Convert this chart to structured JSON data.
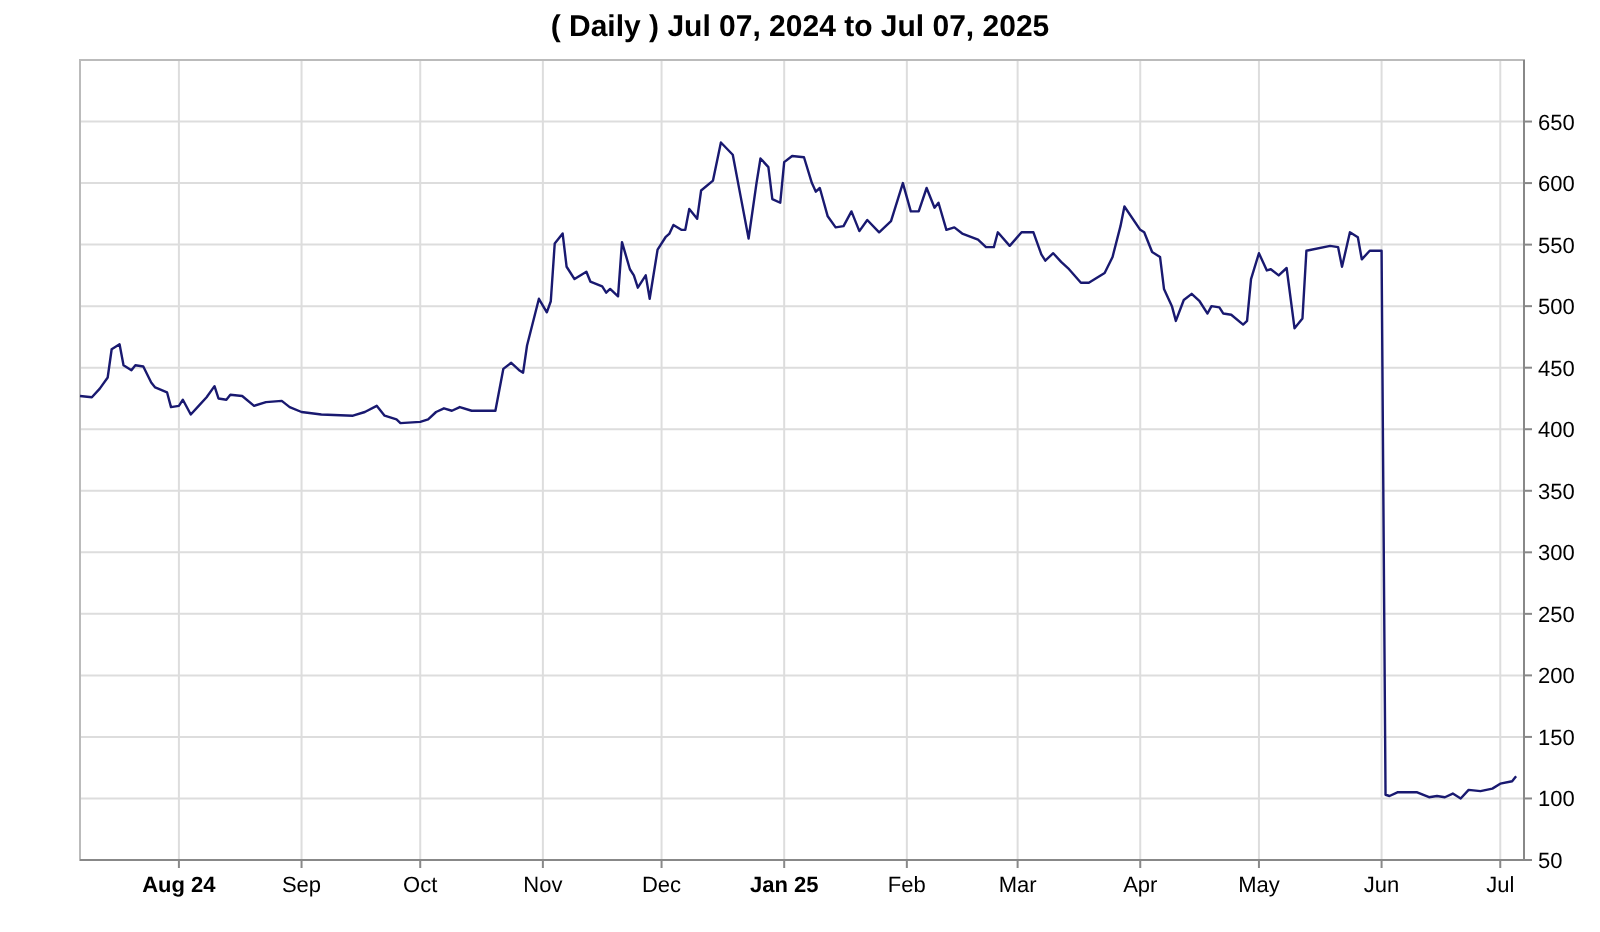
{
  "chart_data": {
    "type": "line",
    "title": "( Daily ) Jul 07, 2024 to Jul 07, 2025",
    "x": [
      "2024-07-07",
      "2024-07-10",
      "2024-07-12",
      "2024-07-14",
      "2024-07-15",
      "2024-07-17",
      "2024-07-18",
      "2024-07-20",
      "2024-07-21",
      "2024-07-23",
      "2024-07-25",
      "2024-07-26",
      "2024-07-29",
      "2024-07-30",
      "2024-08-01",
      "2024-08-02",
      "2024-08-04",
      "2024-08-06",
      "2024-08-08",
      "2024-08-10",
      "2024-08-11",
      "2024-08-13",
      "2024-08-14",
      "2024-08-17",
      "2024-08-20",
      "2024-08-23",
      "2024-08-27",
      "2024-08-29",
      "2024-09-01",
      "2024-09-06",
      "2024-09-14",
      "2024-09-17",
      "2024-09-20",
      "2024-09-22",
      "2024-09-25",
      "2024-09-26",
      "2024-10-01",
      "2024-10-03",
      "2024-10-05",
      "2024-10-07",
      "2024-10-09",
      "2024-10-11",
      "2024-10-14",
      "2024-10-20",
      "2024-10-22",
      "2024-10-24",
      "2024-10-26",
      "2024-10-27",
      "2024-10-28",
      "2024-10-31",
      "2024-11-02",
      "2024-11-03",
      "2024-11-04",
      "2024-11-06",
      "2024-11-07",
      "2024-11-09",
      "2024-11-12",
      "2024-11-13",
      "2024-11-16",
      "2024-11-17",
      "2024-11-18",
      "2024-11-20",
      "2024-11-21",
      "2024-11-23",
      "2024-11-24",
      "2024-11-25",
      "2024-11-27",
      "2024-11-28",
      "2024-11-30",
      "2024-12-02",
      "2024-12-03",
      "2024-12-04",
      "2024-12-06",
      "2024-12-07",
      "2024-12-08",
      "2024-12-10",
      "2024-12-11",
      "2024-12-14",
      "2024-12-16",
      "2024-12-19",
      "2024-12-21",
      "2024-12-23",
      "2024-12-25",
      "2024-12-26",
      "2024-12-28",
      "2024-12-29",
      "2024-12-31",
      "2025-01-01",
      "2025-01-03",
      "2025-01-06",
      "2025-01-08",
      "2025-01-09",
      "2025-01-10",
      "2025-01-12",
      "2025-01-14",
      "2025-01-16",
      "2025-01-18",
      "2025-01-20",
      "2025-01-22",
      "2025-01-25",
      "2025-01-28",
      "2025-01-31",
      "2025-02-02",
      "2025-02-04",
      "2025-02-06",
      "2025-02-08",
      "2025-02-09",
      "2025-02-11",
      "2025-02-13",
      "2025-02-15",
      "2025-02-19",
      "2025-02-21",
      "2025-02-23",
      "2025-02-24",
      "2025-02-27",
      "2025-03-02",
      "2025-03-05",
      "2025-03-07",
      "2025-03-08",
      "2025-03-10",
      "2025-03-12",
      "2025-03-14",
      "2025-03-17",
      "2025-03-19",
      "2025-03-23",
      "2025-03-25",
      "2025-03-27",
      "2025-03-28",
      "2025-04-01",
      "2025-04-02",
      "2025-04-04",
      "2025-04-06",
      "2025-04-07",
      "2025-04-09",
      "2025-04-10",
      "2025-04-12",
      "2025-04-14",
      "2025-04-16",
      "2025-04-18",
      "2025-04-19",
      "2025-04-21",
      "2025-04-22",
      "2025-04-24",
      "2025-04-27",
      "2025-04-28",
      "2025-04-29",
      "2025-05-01",
      "2025-05-03",
      "2025-05-04",
      "2025-05-06",
      "2025-05-08",
      "2025-05-10",
      "2025-05-12",
      "2025-05-13",
      "2025-05-19",
      "2025-05-21",
      "2025-05-22",
      "2025-05-24",
      "2025-05-26",
      "2025-05-27",
      "2025-05-29",
      "2025-06-01",
      "2025-06-02",
      "2025-06-03",
      "2025-06-05",
      "2025-06-08",
      "2025-06-10",
      "2025-06-13",
      "2025-06-15",
      "2025-06-17",
      "2025-06-19",
      "2025-06-21",
      "2025-06-23",
      "2025-06-26",
      "2025-06-29",
      "2025-07-01",
      "2025-07-04",
      "2025-07-05"
    ],
    "series": [
      {
        "color": "#191970",
        "values": [
          427,
          426,
          433,
          442,
          465,
          469,
          452,
          448,
          452,
          451,
          438,
          434,
          430,
          418,
          419,
          424,
          412,
          419,
          426,
          435,
          425,
          424,
          428,
          427,
          419,
          422,
          423,
          418,
          414,
          412,
          411,
          414,
          419,
          411,
          408,
          405,
          406,
          408,
          414,
          417,
          415,
          418,
          415,
          415,
          449,
          454,
          448,
          446,
          468,
          506,
          495,
          504,
          551,
          559,
          532,
          522,
          528,
          520,
          516,
          511,
          514,
          508,
          552,
          530,
          525,
          515,
          525,
          506,
          546,
          556,
          559,
          566,
          562,
          562,
          579,
          571,
          594,
          602,
          633,
          623,
          589,
          555,
          600,
          620,
          613,
          587,
          584,
          617,
          622,
          621,
          600,
          593,
          596,
          573,
          564,
          565,
          577,
          561,
          570,
          560,
          569,
          600,
          577,
          577,
          596,
          580,
          584,
          562,
          564,
          559,
          554,
          548,
          548,
          560,
          549,
          560,
          560,
          542,
          537,
          543,
          536,
          530,
          519,
          519,
          527,
          540,
          565,
          581,
          562,
          560,
          544,
          540,
          514,
          500,
          488,
          505,
          510,
          504,
          494,
          500,
          499,
          494,
          493,
          485,
          488,
          522,
          543,
          529,
          530,
          525,
          531,
          482,
          490,
          545,
          549,
          548,
          532,
          560,
          556,
          538,
          545,
          545,
          103,
          102,
          105,
          105,
          105,
          101,
          102,
          101,
          104,
          100,
          107,
          106,
          108,
          112,
          114,
          118
        ]
      }
    ],
    "xlim": [
      "2024-07-07",
      "2025-07-07"
    ],
    "xticks": [
      {
        "value": "2024-08-01",
        "label": "Aug 24"
      },
      {
        "value": "2024-09-01",
        "label": "Sep"
      },
      {
        "value": "2024-10-01",
        "label": "Oct"
      },
      {
        "value": "2024-11-01",
        "label": "Nov"
      },
      {
        "value": "2024-12-01",
        "label": "Dec"
      },
      {
        "value": "2025-01-01",
        "label": "Jan 25"
      },
      {
        "value": "2025-02-01",
        "label": "Feb"
      },
      {
        "value": "2025-03-01",
        "label": "Mar"
      },
      {
        "value": "2025-04-01",
        "label": "Apr"
      },
      {
        "value": "2025-05-01",
        "label": "May"
      },
      {
        "value": "2025-06-01",
        "label": "Jun"
      },
      {
        "value": "2025-07-01",
        "label": "Jul"
      }
    ],
    "ylim": [
      50,
      700
    ],
    "yticks": [
      50,
      100,
      150,
      200,
      250,
      300,
      350,
      400,
      450,
      500,
      550,
      600,
      650
    ],
    "grid": true,
    "marker": "none",
    "line_style": "solid"
  }
}
